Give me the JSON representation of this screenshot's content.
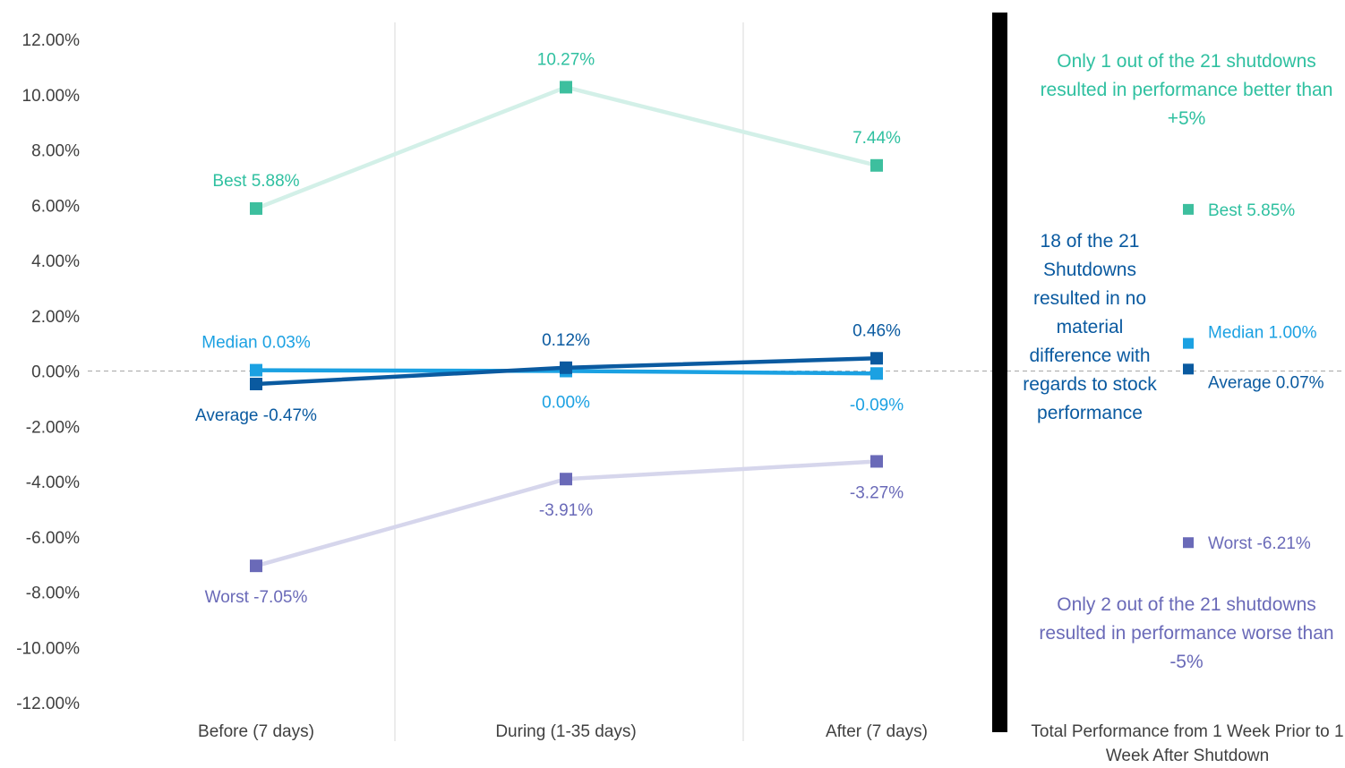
{
  "chart_data": {
    "type": "line",
    "categories": [
      "Before (7 days)",
      "During (1-35 days)",
      "After (7 days)"
    ],
    "ylim": [
      -12,
      12
    ],
    "ytick_step": 2,
    "ytick_labels": [
      "12.00%",
      "10.00%",
      "8.00%",
      "6.00%",
      "4.00%",
      "2.00%",
      "0.00%",
      "-2.00%",
      "-4.00%",
      "-6.00%",
      "-8.00%",
      "-10.00%",
      "-12.00%"
    ],
    "series": [
      {
        "name": "Best",
        "values": [
          5.88,
          10.27,
          7.44
        ],
        "labels": [
          "Best 5.88%",
          "10.27%",
          "7.44%"
        ],
        "label_pos": [
          "above",
          "above",
          "above"
        ],
        "line_color": "#d3f0e8",
        "marker_color": "#3dbf9e",
        "text_color": "#2fc0a0"
      },
      {
        "name": "Median",
        "values": [
          0.03,
          0.0,
          -0.09
        ],
        "labels": [
          "Median 0.03%",
          "0.00%",
          "-0.09%"
        ],
        "label_pos": [
          "above",
          "below",
          "below"
        ],
        "line_color": "#1ba1e2",
        "marker_color": "#1ba1e2",
        "text_color": "#1ba1e2"
      },
      {
        "name": "Average",
        "values": [
          -0.47,
          0.12,
          0.46
        ],
        "labels": [
          "Average -0.47%",
          "0.12%",
          "0.46%"
        ],
        "label_pos": [
          "below",
          "above",
          "above"
        ],
        "line_color": "#0a5aa0",
        "marker_color": "#0a5aa0",
        "text_color": "#0a5aa0"
      },
      {
        "name": "Worst",
        "values": [
          -7.05,
          -3.91,
          -3.27
        ],
        "labels": [
          "Worst -7.05%",
          "-3.91%",
          "-3.27%"
        ],
        "label_pos": [
          "below",
          "below",
          "below"
        ],
        "line_color": "#d6d6ec",
        "marker_color": "#6a6ab8",
        "text_color": "#6a6ab8"
      }
    ],
    "total": {
      "category": "Total Performance from 1 Week Prior to 1 Week After Shutdown",
      "points": [
        {
          "name": "Best",
          "value": 5.85,
          "label": "Best 5.85%",
          "color": "#3dbf9e",
          "text_color": "#2fc0a0"
        },
        {
          "name": "Median",
          "value": 1.0,
          "label": "Median 1.00%",
          "color": "#1ba1e2",
          "text_color": "#1ba1e2"
        },
        {
          "name": "Average",
          "value": 0.07,
          "label": "Average 0.07%",
          "color": "#0a5aa0",
          "text_color": "#0a5aa0"
        },
        {
          "name": "Worst",
          "value": -6.21,
          "label": "Worst -6.21%",
          "color": "#6a6ab8",
          "text_color": "#6a6ab8"
        }
      ]
    }
  },
  "notes": {
    "top": "Only 1 out of the 21 shutdowns resulted in performance better than +5%",
    "middle": "18 of the 21 Shutdowns resulted in no material difference with regards to stock performance",
    "bottom": "Only 2 out of the 21 shutdowns resulted in performance worse than -5%"
  }
}
